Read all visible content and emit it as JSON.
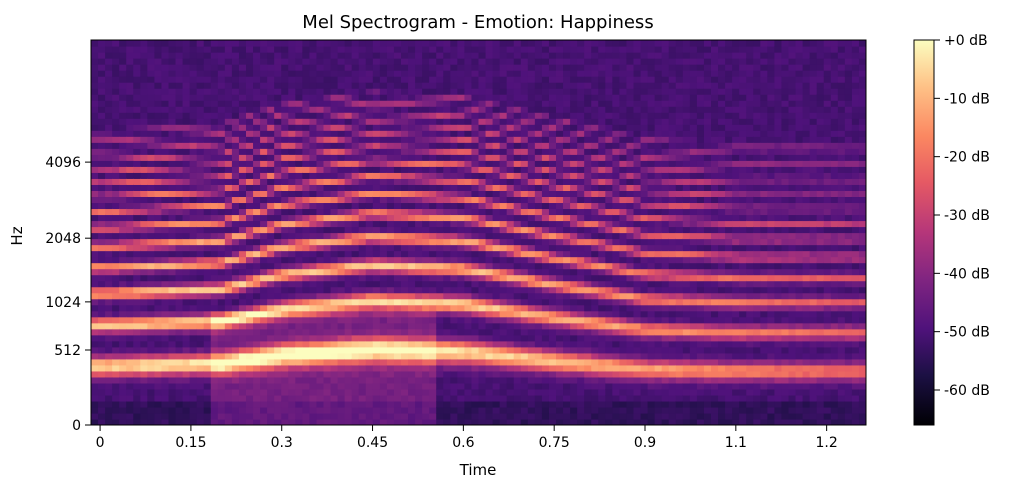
{
  "chart_data": {
    "type": "heatmap",
    "title": "Mel Spectrogram - Emotion: Happiness",
    "xlabel": "Time",
    "ylabel": "Hz",
    "x_ticks": [
      "0",
      "0.15",
      "0.3",
      "0.45",
      "0.6",
      "0.75",
      "0.9",
      "1.1",
      "1.2"
    ],
    "x_tick_values": [
      0,
      0.15,
      0.3,
      0.45,
      0.6,
      0.75,
      0.9,
      1.05,
      1.2
    ],
    "y_ticks": [
      "0",
      "512",
      "1024",
      "2048",
      "4096"
    ],
    "y_scale": "mel",
    "xlim": [
      -0.015,
      1.265
    ],
    "ylim_hz": [
      0,
      11025
    ],
    "colorbar": {
      "label_ticks": [
        "+0 dB",
        "-10 dB",
        "-20 dB",
        "-30 dB",
        "-40 dB",
        "-50 dB",
        "-60 dB"
      ],
      "range_db": [
        -66,
        0
      ],
      "colormap": "magma"
    },
    "harmonics": {
      "description_units": "Hz over time (s)",
      "f0_points": [
        {
          "t": 0.02,
          "hz": 380
        },
        {
          "t": 0.2,
          "hz": 400
        },
        {
          "t": 0.3,
          "hz": 470
        },
        {
          "t": 0.45,
          "hz": 520
        },
        {
          "t": 0.6,
          "hz": 500
        },
        {
          "t": 0.75,
          "hz": 420
        },
        {
          "t": 0.9,
          "hz": 355
        },
        {
          "t": 1.05,
          "hz": 340
        },
        {
          "t": 1.2,
          "hz": 340
        },
        {
          "t": 1.25,
          "hz": 340
        }
      ]
    }
  }
}
